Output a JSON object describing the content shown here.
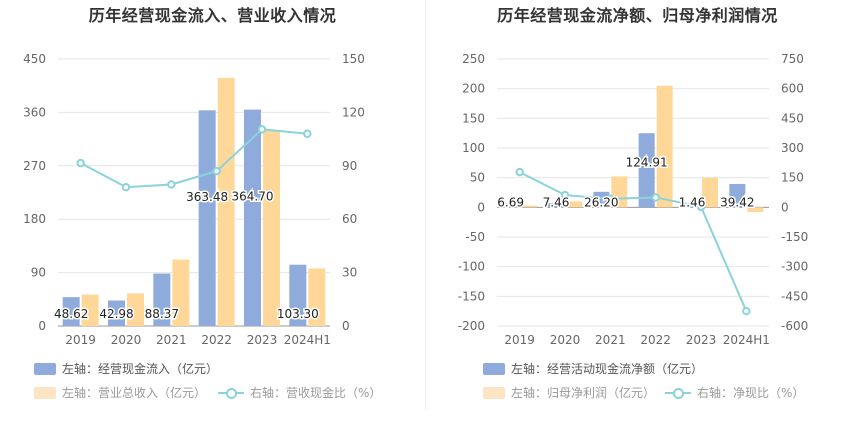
{
  "colors": {
    "bar_primary": "#8eabdc",
    "bar_secondary": "#ffd899",
    "line": "#8bd3da",
    "grid": "#e6e6e6",
    "axis_text": "#666666"
  },
  "chart_data": [
    {
      "type": "bar",
      "title": "历年经营现金流入、营业收入情况",
      "categories": [
        "2019",
        "2020",
        "2021",
        "2022",
        "2023",
        "2024H1"
      ],
      "left_axis": {
        "ticks": [
          "0",
          "90",
          "180",
          "270",
          "360",
          "450"
        ],
        "ylim": [
          0,
          450
        ]
      },
      "right_axis": {
        "ticks": [
          "0",
          "30",
          "60",
          "90",
          "120",
          "150"
        ],
        "ylim": [
          0,
          150
        ]
      },
      "series": [
        {
          "name": "左轴：经营现金流入（亿元）",
          "axis": "left",
          "kind": "bar",
          "values": [
            48.62,
            42.98,
            88.37,
            363.48,
            364.7,
            103.3
          ],
          "labels": [
            "48.62",
            "42.98",
            "88.37",
            "363.48",
            "364.70",
            "103.30"
          ]
        },
        {
          "name": "左轴：营业总收入（亿元）",
          "axis": "left",
          "kind": "bar",
          "values": [
            53,
            55,
            112,
            418,
            330,
            97
          ]
        },
        {
          "name": "右轴：营收现金比（%）",
          "axis": "right",
          "kind": "line",
          "values": [
            91.5,
            78,
            79.5,
            87,
            110.5,
            108
          ]
        }
      ],
      "grid": true,
      "legend_position": "bottom"
    },
    {
      "type": "bar",
      "title": "历年经营现金流净额、归母净利润情况",
      "categories": [
        "2019",
        "2020",
        "2021",
        "2022",
        "2023",
        "2024H1"
      ],
      "left_axis": {
        "ticks": [
          "-200",
          "-150",
          "-100",
          "-50",
          "0",
          "50",
          "100",
          "150",
          "200",
          "250"
        ],
        "ylim": [
          -200,
          250
        ]
      },
      "right_axis": {
        "ticks": [
          "-600",
          "-450",
          "-300",
          "-150",
          "0",
          "150",
          "300",
          "450",
          "600",
          "750"
        ],
        "ylim": [
          -600,
          750
        ]
      },
      "series": [
        {
          "name": "左轴：经营活动现金流净额（亿元）",
          "axis": "left",
          "kind": "bar",
          "values": [
            6.69,
            7.46,
            26.2,
            124.91,
            1.46,
            39.42
          ],
          "labels": [
            "6.69",
            "7.46",
            "26.20",
            "124.91",
            "1.46",
            "39.42"
          ]
        },
        {
          "name": "左轴：归母净利润（亿元）",
          "axis": "left",
          "kind": "bar",
          "values": [
            3,
            10,
            52,
            205,
            50,
            -8
          ]
        },
        {
          "name": "右轴：净现比（%）",
          "axis": "right",
          "kind": "line",
          "values": [
            178,
            62,
            43,
            50,
            3,
            -525
          ]
        }
      ],
      "grid": true,
      "legend_position": "bottom"
    }
  ]
}
